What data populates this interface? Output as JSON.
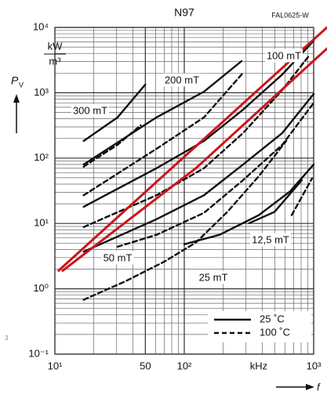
{
  "chart_data": {
    "type": "line",
    "title": "N97",
    "code": "FAL0625-W",
    "ylabel": "P",
    "ylabel_sub": "V",
    "yunit_top": "kW",
    "yunit_bottom": "m³",
    "xunit": "kHz",
    "xlabel": "f",
    "edge_text": "3",
    "xscale": "log",
    "yscale": "log",
    "grid": true,
    "xlim": [
      10,
      1000
    ],
    "ylim": [
      0.1,
      10000
    ],
    "xticks": [
      {
        "value": 10,
        "label": "10¹"
      },
      50.0,
      {
        "value": 100,
        "label": "10²"
      },
      {
        "value": 1000,
        "label": "10³"
      }
    ],
    "yticks": [
      {
        "value": 0.1,
        "label": "10⁻¹"
      },
      {
        "value": 1,
        "label": "10⁰"
      },
      {
        "value": 10,
        "label": "10¹"
      },
      {
        "value": 100,
        "label": "10²"
      },
      {
        "value": 1000,
        "label": "10³"
      },
      {
        "value": 10000,
        "label": "10⁴"
      }
    ],
    "xminor": [
      20,
      30,
      40,
      60,
      70,
      80,
      90,
      200,
      300,
      400,
      500,
      600,
      700,
      800,
      900
    ],
    "yminor": [
      0.2,
      0.3,
      0.4,
      0.5,
      0.6,
      0.7,
      0.8,
      0.9,
      2,
      3,
      4,
      5,
      6,
      7,
      8,
      9,
      20,
      30,
      40,
      50,
      60,
      70,
      80,
      90,
      200,
      300,
      400,
      500,
      600,
      700,
      800,
      900,
      2000,
      3000,
      4000,
      5000,
      6000,
      7000,
      8000,
      9000
    ],
    "series": [
      {
        "dash": "solid",
        "color": "#111111",
        "x": [
          16.7,
          30.5,
          50
        ],
        "values": [
          183,
          420,
          1336
        ]
      },
      {
        "dash": "dashed",
        "color": "#111111",
        "x": [
          16.7,
          30.5,
          46
        ],
        "values": [
          74,
          160,
          318
        ]
      },
      {
        "dash": "solid",
        "color": "#111111",
        "x": [
          16.7,
          61,
          142,
          277
        ],
        "values": [
          80,
          420,
          1040,
          3055
        ]
      },
      {
        "dash": "dashed",
        "color": "#111111",
        "x": [
          16.7,
          61,
          142,
          285
        ],
        "values": [
          27,
          139,
          420,
          2020
        ]
      },
      {
        "dash": "solid",
        "color": "#111111",
        "x": [
          16.7,
          61,
          142,
          285,
          572,
          1000
        ],
        "values": [
          18,
          70,
          183,
          553,
          1910,
          6250
        ]
      },
      {
        "dash": "dashed",
        "color": "#111111",
        "x": [
          16.7,
          61,
          142,
          285,
          572,
          933
        ],
        "values": [
          8.8,
          27,
          70,
          242,
          1100,
          3810
        ]
      },
      {
        "dash": "solid",
        "color": "#111111",
        "x": [
          16.7,
          61,
          142,
          285,
          572,
          1000
        ],
        "values": [
          3.7,
          11.6,
          27,
          80,
          242,
          960
        ]
      },
      {
        "dash": "dashed",
        "color": "#111111",
        "x": [
          30.5,
          61,
          142,
          285,
          572,
          1000
        ],
        "values": [
          4.4,
          6.7,
          14.5,
          46,
          160,
          700
        ]
      },
      {
        "dash": "solid",
        "color": "#111111",
        "x": [
          100,
          187,
          377,
          658,
          1000
        ],
        "values": [
          4.8,
          6.7,
          13.4,
          31,
          80
        ]
      },
      {
        "dash": "dashed",
        "color": "#111111",
        "x": [
          16.7,
          35,
          70,
          123,
          215,
          377,
          614
        ],
        "values": [
          0.68,
          1.3,
          2.6,
          5.1,
          15,
          53,
          183
        ]
      },
      {
        "dash": "solid",
        "color": "#111111",
        "x": [
          318,
          498,
          811
        ],
        "values": [
          10.1,
          15,
          46
        ]
      },
      {
        "dash": "dashed",
        "color": "#111111",
        "x": [
          677,
          973
        ],
        "values": [
          13.4,
          49
        ]
      },
      {
        "dash": "solid",
        "color": "#c8161d",
        "x": [
          10.7,
          1268
        ],
        "values": [
          1.9,
          10000
        ]
      },
      {
        "dash": "solid",
        "color": "#c8161d",
        "x": [
          11.5,
          123,
          1268
        ],
        "values": [
          1.9,
          70,
          4750
        ]
      }
    ],
    "annotations": [
      "300 mT",
      "200 mT",
      "100 mT",
      "50 mT",
      "25 mT",
      "12,5 mT"
    ],
    "legend": {
      "position": "lower right",
      "entries": [
        {
          "label": "25 ˚C",
          "dash": "solid"
        },
        {
          "label": "100 ˚C",
          "dash": "dashed"
        }
      ]
    }
  }
}
